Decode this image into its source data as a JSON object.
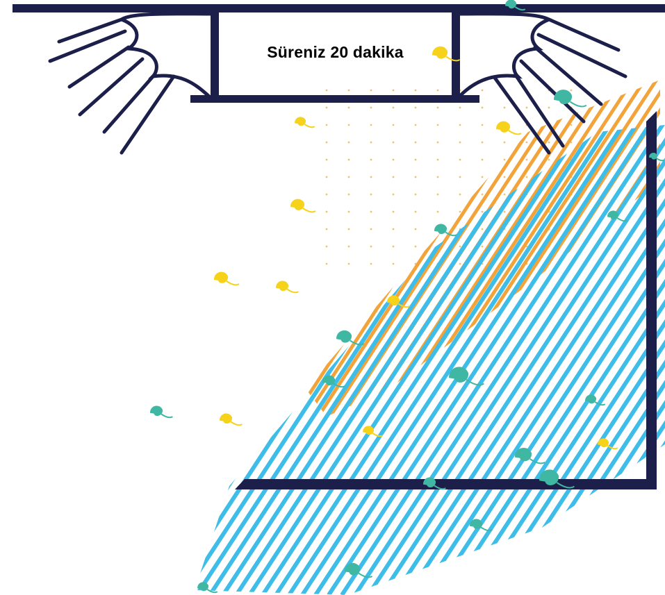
{
  "banner": {
    "title": "Süreniz 20 dakika"
  },
  "colors": {
    "navy": "#1c1f4a",
    "orange": "#f2a33a",
    "blue": "#3ebde9",
    "yellow": "#f7d21b",
    "teal": "#3fb7a3"
  },
  "icons": [
    "light-rays-left",
    "light-rays-right",
    "scroll-banner",
    "stage-frame",
    "confetti-splash"
  ]
}
